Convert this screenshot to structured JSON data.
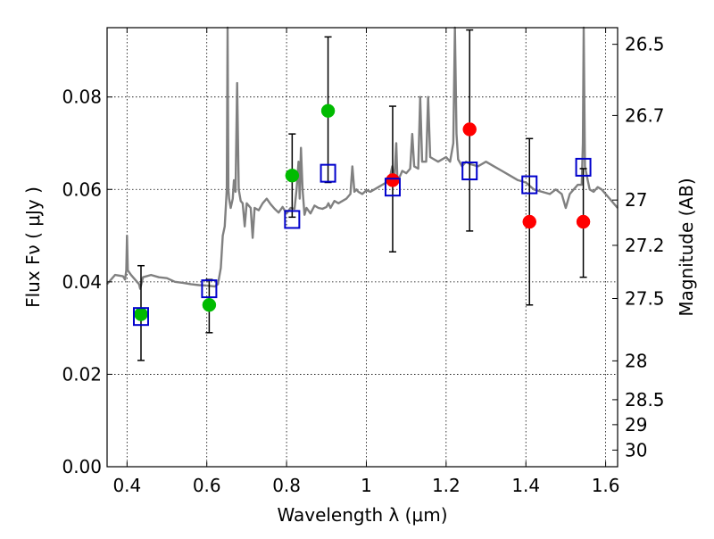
{
  "chart_data": {
    "type": "scatter",
    "xlabel": "Wavelength  λ (μm)",
    "ylabel": "Flux  Fν  ( μJy )",
    "y2label": "Magnitude (AB)",
    "xlim": [
      0.35,
      1.63
    ],
    "ylim": [
      0.0,
      0.095
    ],
    "grid": true,
    "legend": "none",
    "x_ticks": [
      0.4,
      0.6,
      0.8,
      1.0,
      1.2,
      1.4,
      1.6
    ],
    "x_tick_labels": [
      "0.4",
      "0.6",
      "0.8",
      "1",
      "1.2",
      "1.4",
      "1.6"
    ],
    "y_ticks": [
      0.0,
      0.02,
      0.04,
      0.06,
      0.08
    ],
    "y_tick_labels": [
      "0.00",
      "0.02",
      "0.04",
      "0.06",
      "0.08"
    ],
    "y2_ticks": [
      {
        "flux": 0.0914,
        "label": "26.5"
      },
      {
        "flux": 0.076,
        "label": "26.7"
      },
      {
        "flux": 0.0577,
        "label": "27"
      },
      {
        "flux": 0.0479,
        "label": "27.2"
      },
      {
        "flux": 0.0364,
        "label": "27.5"
      },
      {
        "flux": 0.0229,
        "label": "28"
      },
      {
        "flux": 0.0145,
        "label": "28.5"
      },
      {
        "flux": 0.0091,
        "label": "29"
      },
      {
        "flux": 0.0036,
        "label": "30"
      }
    ],
    "colors": {
      "spectrum": "#808080",
      "green": "#00bb00",
      "red": "#ff0000",
      "model": "#0000cc",
      "errorbar": "#000000",
      "grid": "#000000"
    },
    "series": [
      {
        "marker": "circle",
        "color": "green",
        "points": [
          {
            "x": 0.435,
            "y": 0.033,
            "err": [
              0.023,
              0.0435
            ]
          },
          {
            "x": 0.606,
            "y": 0.035,
            "err": [
              0.029,
              0.0405
            ]
          },
          {
            "x": 0.814,
            "y": 0.063,
            "err": [
              0.054,
              0.072
            ]
          },
          {
            "x": 0.904,
            "y": 0.077,
            "err": [
              0.0615,
              0.093
            ]
          }
        ]
      },
      {
        "marker": "circle",
        "color": "red",
        "points": [
          {
            "x": 1.066,
            "y": 0.062,
            "err": [
              0.0465,
              0.078
            ]
          },
          {
            "x": 1.259,
            "y": 0.073,
            "err": [
              0.051,
              0.0945
            ]
          },
          {
            "x": 1.409,
            "y": 0.053,
            "err": [
              0.035,
              0.071
            ]
          },
          {
            "x": 1.544,
            "y": 0.053,
            "err": [
              0.041,
              0.0645
            ]
          }
        ]
      },
      {
        "marker": "open-square",
        "color": "model",
        "points": [
          {
            "x": 0.435,
            "y": 0.0325
          },
          {
            "x": 0.606,
            "y": 0.0385
          },
          {
            "x": 0.814,
            "y": 0.0535
          },
          {
            "x": 0.904,
            "y": 0.0635
          },
          {
            "x": 1.066,
            "y": 0.0605
          },
          {
            "x": 1.259,
            "y": 0.064
          },
          {
            "x": 1.409,
            "y": 0.061
          },
          {
            "x": 1.544,
            "y": 0.0648
          }
        ]
      }
    ],
    "spectrum": [
      [
        0.35,
        0.0395
      ],
      [
        0.37,
        0.0415
      ],
      [
        0.39,
        0.0412
      ],
      [
        0.395,
        0.0405
      ],
      [
        0.398,
        0.0425
      ],
      [
        0.4,
        0.05
      ],
      [
        0.402,
        0.0425
      ],
      [
        0.41,
        0.0415
      ],
      [
        0.43,
        0.0395
      ],
      [
        0.433,
        0.0385
      ],
      [
        0.44,
        0.041
      ],
      [
        0.46,
        0.0415
      ],
      [
        0.48,
        0.041
      ],
      [
        0.5,
        0.0408
      ],
      [
        0.52,
        0.04
      ],
      [
        0.54,
        0.0398
      ],
      [
        0.56,
        0.0395
      ],
      [
        0.58,
        0.0393
      ],
      [
        0.6,
        0.0392
      ],
      [
        0.62,
        0.039
      ],
      [
        0.628,
        0.0395
      ],
      [
        0.635,
        0.043
      ],
      [
        0.64,
        0.05
      ],
      [
        0.645,
        0.052
      ],
      [
        0.65,
        0.06
      ],
      [
        0.652,
        0.095
      ],
      [
        0.654,
        0.06
      ],
      [
        0.656,
        0.058
      ],
      [
        0.66,
        0.056
      ],
      [
        0.665,
        0.058
      ],
      [
        0.668,
        0.062
      ],
      [
        0.672,
        0.0595
      ],
      [
        0.676,
        0.083
      ],
      [
        0.68,
        0.06
      ],
      [
        0.685,
        0.0575
      ],
      [
        0.69,
        0.057
      ],
      [
        0.695,
        0.052
      ],
      [
        0.7,
        0.057
      ],
      [
        0.71,
        0.056
      ],
      [
        0.715,
        0.0495
      ],
      [
        0.72,
        0.056
      ],
      [
        0.73,
        0.0555
      ],
      [
        0.74,
        0.057
      ],
      [
        0.75,
        0.058
      ],
      [
        0.76,
        0.0568
      ],
      [
        0.77,
        0.0558
      ],
      [
        0.78,
        0.055
      ],
      [
        0.79,
        0.0562
      ],
      [
        0.8,
        0.0548
      ],
      [
        0.81,
        0.056
      ],
      [
        0.82,
        0.0558
      ],
      [
        0.825,
        0.06
      ],
      [
        0.83,
        0.066
      ],
      [
        0.833,
        0.058
      ],
      [
        0.836,
        0.069
      ],
      [
        0.84,
        0.06
      ],
      [
        0.845,
        0.0545
      ],
      [
        0.85,
        0.056
      ],
      [
        0.86,
        0.0548
      ],
      [
        0.87,
        0.0565
      ],
      [
        0.88,
        0.056
      ],
      [
        0.89,
        0.0558
      ],
      [
        0.9,
        0.0562
      ],
      [
        0.905,
        0.057
      ],
      [
        0.91,
        0.056
      ],
      [
        0.92,
        0.0575
      ],
      [
        0.93,
        0.057
      ],
      [
        0.94,
        0.0575
      ],
      [
        0.95,
        0.058
      ],
      [
        0.96,
        0.059
      ],
      [
        0.965,
        0.065
      ],
      [
        0.97,
        0.0595
      ],
      [
        0.975,
        0.06
      ],
      [
        0.98,
        0.0595
      ],
      [
        0.99,
        0.059
      ],
      [
        1.0,
        0.0598
      ],
      [
        1.01,
        0.0595
      ],
      [
        1.02,
        0.06
      ],
      [
        1.03,
        0.0605
      ],
      [
        1.04,
        0.061
      ],
      [
        1.05,
        0.0615
      ],
      [
        1.06,
        0.063
      ],
      [
        1.065,
        0.065
      ],
      [
        1.07,
        0.062
      ],
      [
        1.075,
        0.07
      ],
      [
        1.078,
        0.062
      ],
      [
        1.085,
        0.063
      ],
      [
        1.09,
        0.064
      ],
      [
        1.1,
        0.0635
      ],
      [
        1.11,
        0.0645
      ],
      [
        1.115,
        0.072
      ],
      [
        1.12,
        0.065
      ],
      [
        1.13,
        0.0645
      ],
      [
        1.135,
        0.08
      ],
      [
        1.14,
        0.066
      ],
      [
        1.15,
        0.066
      ],
      [
        1.155,
        0.08
      ],
      [
        1.16,
        0.067
      ],
      [
        1.17,
        0.0665
      ],
      [
        1.18,
        0.066
      ],
      [
        1.19,
        0.0665
      ],
      [
        1.2,
        0.067
      ],
      [
        1.21,
        0.066
      ],
      [
        1.218,
        0.07
      ],
      [
        1.222,
        0.095
      ],
      [
        1.226,
        0.072
      ],
      [
        1.23,
        0.0665
      ],
      [
        1.24,
        0.065
      ],
      [
        1.25,
        0.066
      ],
      [
        1.26,
        0.0655
      ],
      [
        1.28,
        0.065
      ],
      [
        1.3,
        0.066
      ],
      [
        1.32,
        0.065
      ],
      [
        1.34,
        0.064
      ],
      [
        1.36,
        0.063
      ],
      [
        1.38,
        0.062
      ],
      [
        1.4,
        0.0615
      ],
      [
        1.42,
        0.06
      ],
      [
        1.44,
        0.0595
      ],
      [
        1.46,
        0.059
      ],
      [
        1.475,
        0.06
      ],
      [
        1.49,
        0.059
      ],
      [
        1.5,
        0.056
      ],
      [
        1.51,
        0.059
      ],
      [
        1.52,
        0.06
      ],
      [
        1.53,
        0.061
      ],
      [
        1.54,
        0.061
      ],
      [
        1.543,
        0.07
      ],
      [
        1.545,
        0.095
      ],
      [
        1.548,
        0.065
      ],
      [
        1.555,
        0.062
      ],
      [
        1.56,
        0.06
      ],
      [
        1.57,
        0.0595
      ],
      [
        1.58,
        0.0605
      ],
      [
        1.59,
        0.06
      ],
      [
        1.6,
        0.059
      ],
      [
        1.61,
        0.058
      ],
      [
        1.62,
        0.057
      ],
      [
        1.63,
        0.056
      ]
    ]
  }
}
